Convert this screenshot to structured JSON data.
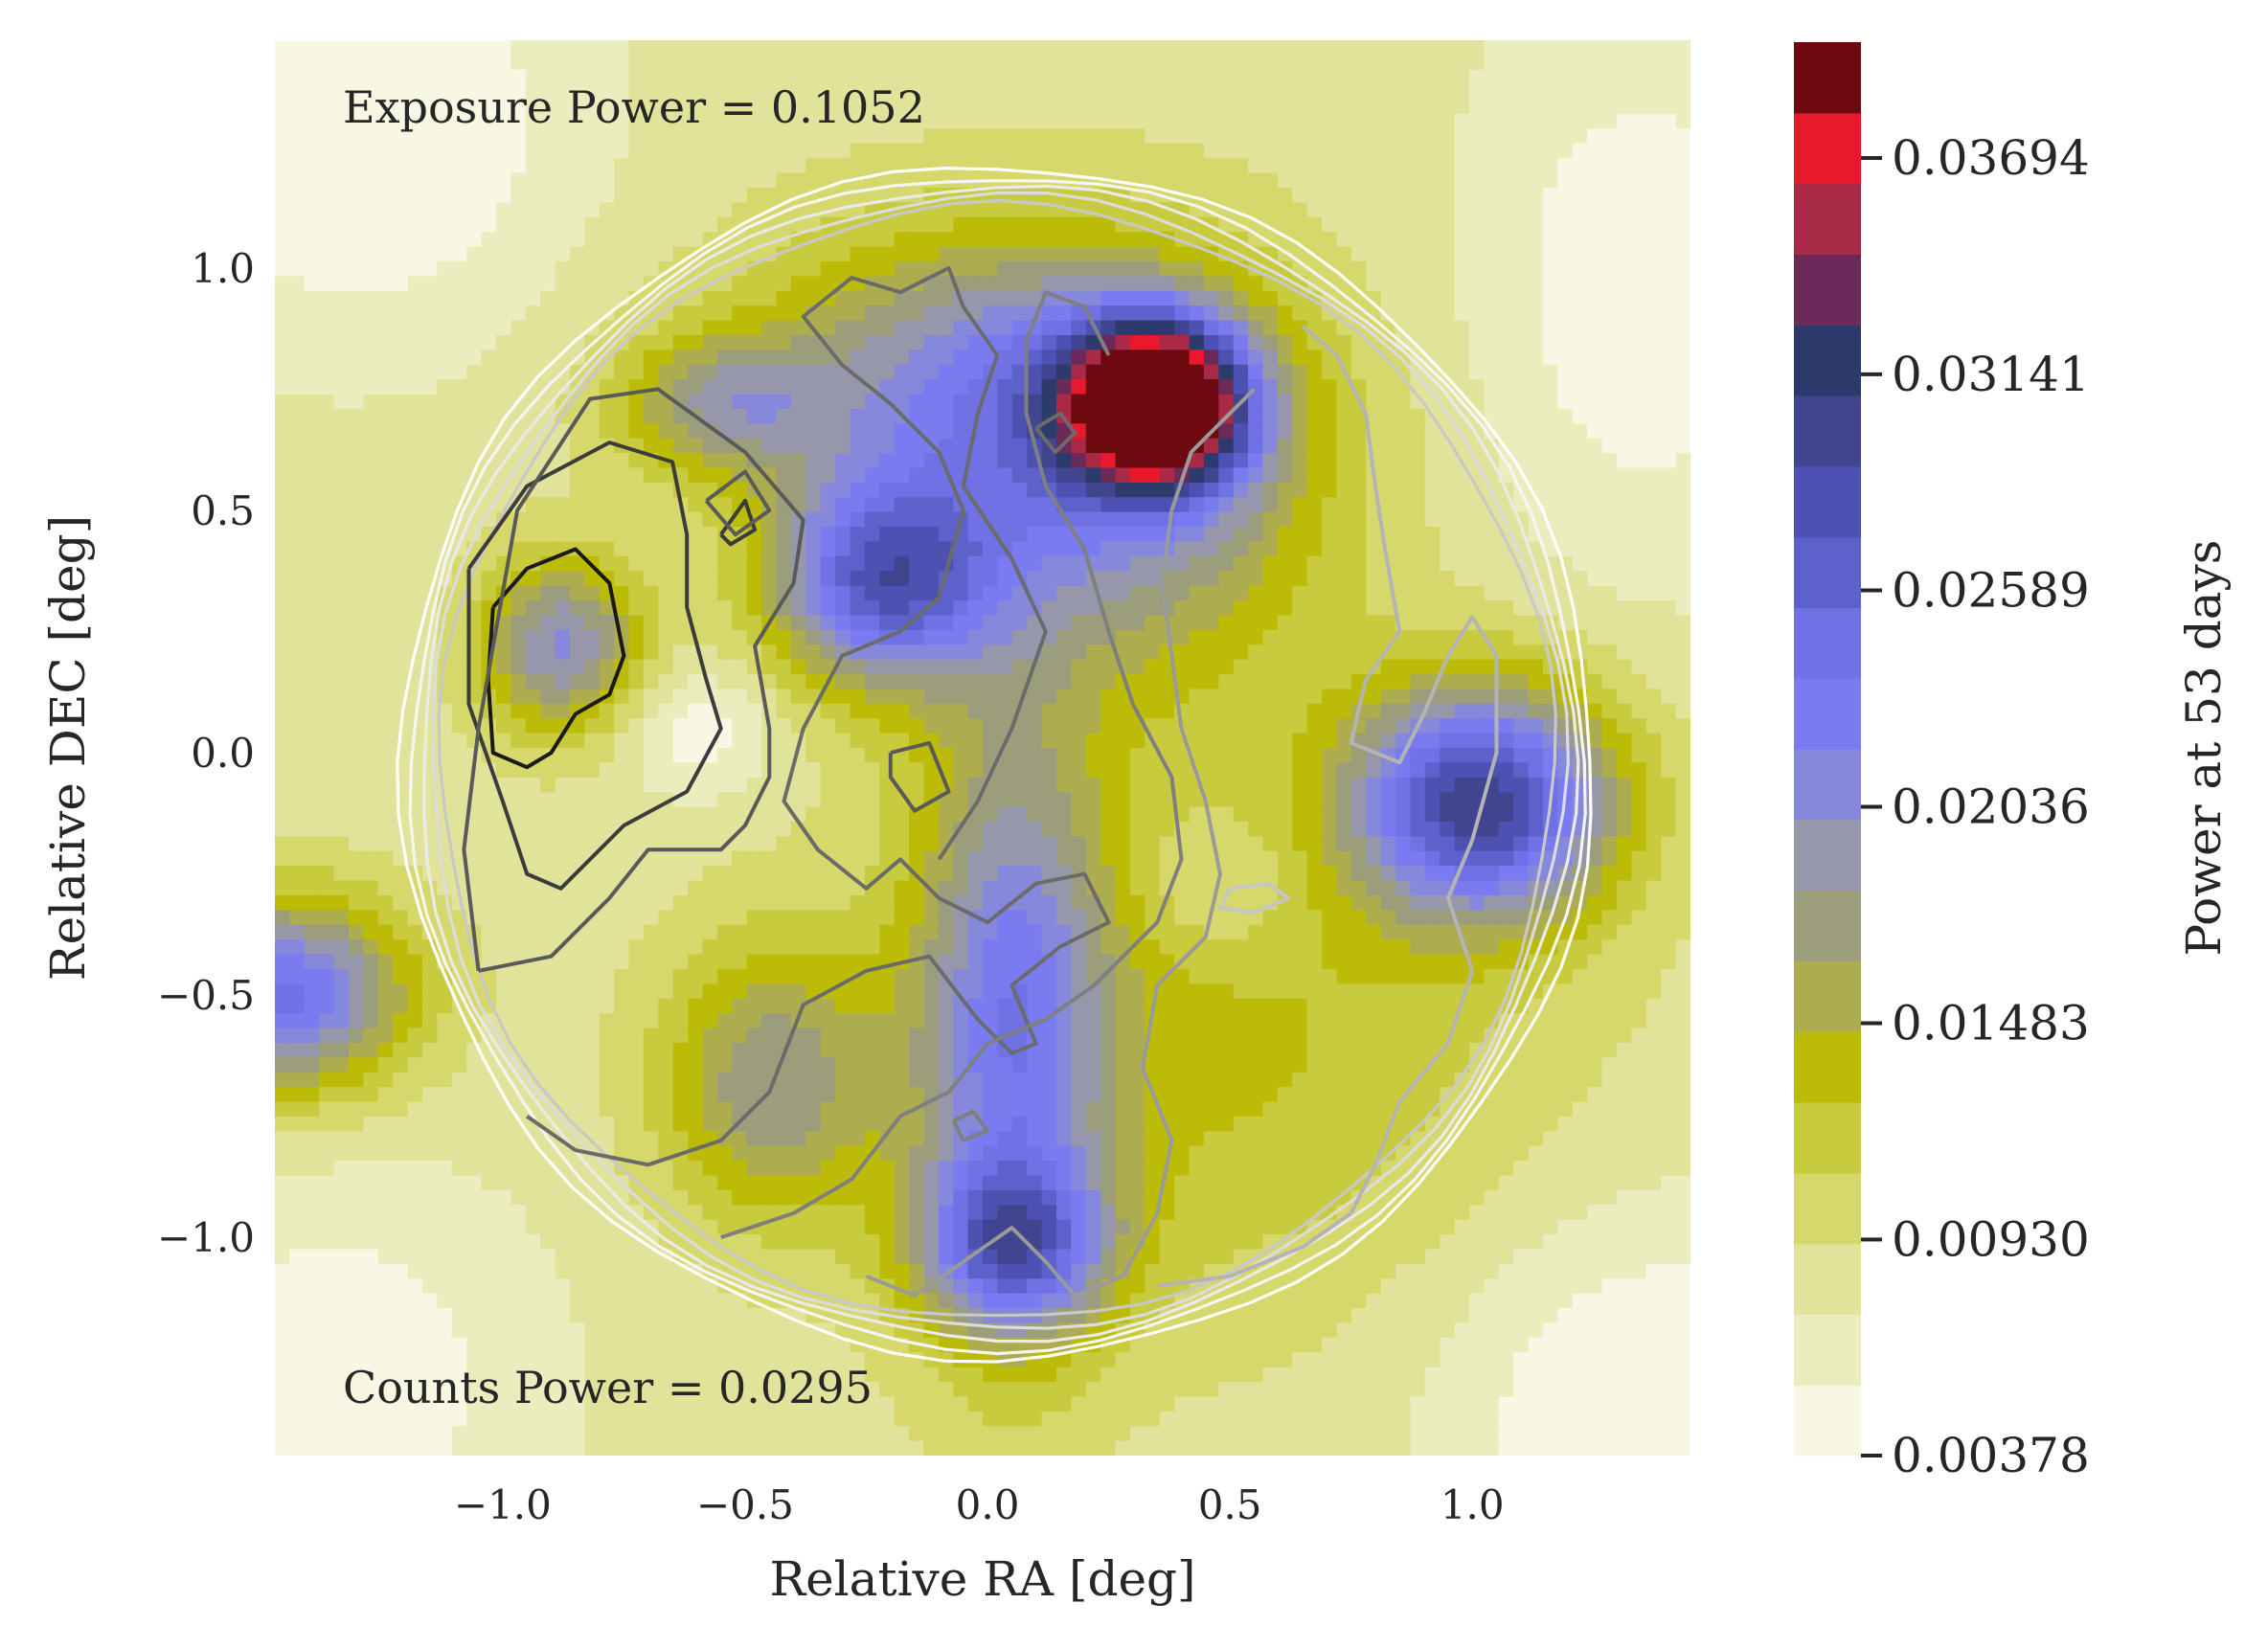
{
  "chart_data": {
    "type": "heatmap",
    "title": "",
    "xlabel": "Relative RA [deg]",
    "ylabel": "Relative DEC [deg]",
    "xlim": [
      -1.47,
      1.45
    ],
    "ylim": [
      -1.45,
      1.47
    ],
    "xticks": [
      -1.0,
      -0.5,
      0.0,
      0.5,
      1.0
    ],
    "xtick_labels": [
      "−1.0",
      "−0.5",
      "0.0",
      "0.5",
      "1.0"
    ],
    "yticks": [
      -1.0,
      -0.5,
      0.0,
      0.5,
      1.0
    ],
    "ytick_labels": [
      "−1.0",
      "−0.5",
      "0.0",
      "0.5",
      "1.0"
    ],
    "grid": true,
    "annotations": {
      "exposure": "Exposure Power = 0.1052",
      "counts": "Counts Power = 0.0295"
    },
    "colorbar": {
      "label": "Power at 53 days",
      "min": 0.00378,
      "max": 0.0399,
      "levels": 20,
      "ticks": [
        0.00378,
        0.0093,
        0.01483,
        0.02036,
        0.02589,
        0.03141,
        0.03694
      ],
      "tick_labels": [
        "0.00378",
        "0.00930",
        "0.01483",
        "0.02036",
        "0.02589",
        "0.03141",
        "0.03694"
      ],
      "colors": [
        "#f7f7e3",
        "#ecedbf",
        "#e2e39b",
        "#d6d86c",
        "#c8cb3e",
        "#bcbc08",
        "#adac4e",
        "#9b9d7b",
        "#9697ab",
        "#8688dc",
        "#7b7bf1",
        "#6f71e4",
        "#5d61cc",
        "#4d51b1",
        "#41448e",
        "#2c3a6c",
        "#6b2a57",
        "#a92a46",
        "#e8182d",
        "#6d0a10"
      ]
    },
    "power_field": {
      "units": "power",
      "background": 0.0082,
      "features": [
        {
          "ra": 0.35,
          "dec": 0.72,
          "amp": 0.031,
          "sra": 0.13,
          "sdec": 0.12
        },
        {
          "ra": 0.25,
          "dec": 0.55,
          "amp": 0.011,
          "sra": 0.32,
          "sdec": 0.3
        },
        {
          "ra": -0.05,
          "dec": 0.78,
          "amp": 0.009,
          "sra": 0.35,
          "sdec": 0.22
        },
        {
          "ra": -0.22,
          "dec": 0.35,
          "amp": 0.016,
          "sra": 0.16,
          "sdec": 0.15
        },
        {
          "ra": 1.02,
          "dec": -0.1,
          "amp": 0.021,
          "sra": 0.19,
          "sdec": 0.17
        },
        {
          "ra": 0.05,
          "dec": -0.55,
          "amp": 0.012,
          "sra": 0.14,
          "sdec": 0.45
        },
        {
          "ra": 0.05,
          "dec": -1.02,
          "amp": 0.013,
          "sra": 0.14,
          "sdec": 0.12
        },
        {
          "ra": -0.88,
          "dec": 0.22,
          "amp": 0.012,
          "sra": 0.12,
          "sdec": 0.13
        },
        {
          "ra": -1.45,
          "dec": -0.5,
          "amp": 0.016,
          "sra": 0.18,
          "sdec": 0.14
        },
        {
          "ra": -0.45,
          "dec": -0.68,
          "amp": 0.009,
          "sra": 0.16,
          "sdec": 0.2
        },
        {
          "ra": 0.45,
          "dec": -0.6,
          "amp": 0.005,
          "sra": 0.5,
          "sdec": 0.4
        },
        {
          "ra": -0.55,
          "dec": 0.72,
          "amp": 0.008,
          "sra": 0.15,
          "sdec": 0.1
        },
        {
          "ra": -1.3,
          "dec": 1.3,
          "amp": -0.0052,
          "sra": 0.3,
          "sdec": 0.3
        },
        {
          "ra": 1.35,
          "dec": -1.35,
          "amp": -0.0048,
          "sra": 0.3,
          "sdec": 0.3
        },
        {
          "ra": 1.35,
          "dec": 0.95,
          "amp": -0.004,
          "sra": 0.25,
          "sdec": 0.4
        },
        {
          "ra": -1.35,
          "dec": -1.3,
          "amp": -0.004,
          "sra": 0.3,
          "sdec": 0.3
        },
        {
          "ra": -0.6,
          "dec": 0.05,
          "amp": -0.004,
          "sra": 0.12,
          "sdec": 0.1
        },
        {
          "ra": 0.48,
          "dec": -0.28,
          "amp": -0.003,
          "sra": 0.12,
          "sdec": 0.1
        }
      ]
    },
    "exposure_contours": {
      "center": [
        0.02,
        -0.02
      ],
      "radii": [
        1.15,
        1.17,
        1.19,
        1.21,
        1.23
      ],
      "colors": [
        "#c8c8c8",
        "#dcdcdc",
        "#eaeaea",
        "#f5f5f5",
        "#ffffff"
      ]
    },
    "counts_contours": [
      {
        "color": "#1a1a1a",
        "points": [
          [
            -1.02,
            0.3
          ],
          [
            -0.95,
            0.38
          ],
          [
            -0.85,
            0.42
          ],
          [
            -0.78,
            0.35
          ],
          [
            -0.75,
            0.2
          ],
          [
            -0.78,
            0.12
          ],
          [
            -0.85,
            0.08
          ],
          [
            -0.9,
            0.0
          ],
          [
            -0.95,
            -0.03
          ],
          [
            -1.02,
            0.0
          ],
          [
            -1.03,
            0.15
          ],
          [
            -1.02,
            0.3
          ]
        ]
      },
      {
        "color": "#3c3c3c",
        "points": [
          [
            -1.07,
            0.38
          ],
          [
            -0.95,
            0.55
          ],
          [
            -0.78,
            0.64
          ],
          [
            -0.65,
            0.6
          ],
          [
            -0.62,
            0.45
          ],
          [
            -0.62,
            0.3
          ],
          [
            -0.58,
            0.15
          ],
          [
            -0.55,
            0.05
          ],
          [
            -0.62,
            -0.08
          ],
          [
            -0.75,
            -0.15
          ],
          [
            -0.88,
            -0.28
          ],
          [
            -0.95,
            -0.25
          ],
          [
            -1.0,
            -0.1
          ],
          [
            -1.07,
            0.1
          ],
          [
            -1.07,
            0.38
          ]
        ]
      },
      {
        "color": "#5a5a5a",
        "points": [
          [
            -1.05,
            -0.45
          ],
          [
            -1.08,
            -0.2
          ],
          [
            -1.05,
            0.05
          ],
          [
            -0.97,
            0.5
          ],
          [
            -0.82,
            0.73
          ],
          [
            -0.68,
            0.75
          ],
          [
            -0.5,
            0.62
          ],
          [
            -0.38,
            0.48
          ],
          [
            -0.4,
            0.35
          ],
          [
            -0.48,
            0.22
          ],
          [
            -0.45,
            0.05
          ],
          [
            -0.45,
            -0.05
          ],
          [
            -0.5,
            -0.15
          ],
          [
            -0.55,
            -0.2
          ],
          [
            -0.7,
            -0.2
          ],
          [
            -0.78,
            -0.3
          ],
          [
            -0.9,
            -0.42
          ],
          [
            -1.05,
            -0.45
          ]
        ]
      },
      {
        "color": "#6b6b6b",
        "points": [
          [
            -0.95,
            -0.75
          ],
          [
            -0.85,
            -0.82
          ],
          [
            -0.7,
            -0.85
          ],
          [
            -0.55,
            -0.8
          ],
          [
            -0.45,
            -0.7
          ],
          [
            -0.38,
            -0.52
          ],
          [
            -0.25,
            -0.45
          ],
          [
            -0.12,
            -0.42
          ],
          [
            -0.02,
            -0.55
          ],
          [
            0.05,
            -0.62
          ],
          [
            0.1,
            -0.6
          ],
          [
            0.05,
            -0.48
          ],
          [
            0.15,
            -0.4
          ],
          [
            0.25,
            -0.35
          ],
          [
            0.2,
            -0.25
          ],
          [
            0.1,
            -0.27
          ],
          [
            0.0,
            -0.35
          ],
          [
            -0.1,
            -0.3
          ],
          [
            -0.18,
            -0.22
          ],
          [
            -0.25,
            -0.28
          ],
          [
            -0.35,
            -0.2
          ],
          [
            -0.42,
            -0.1
          ],
          [
            -0.38,
            0.05
          ],
          [
            -0.3,
            0.2
          ],
          [
            -0.18,
            0.25
          ],
          [
            -0.1,
            0.32
          ],
          [
            -0.05,
            0.5
          ],
          [
            -0.1,
            0.62
          ],
          [
            -0.2,
            0.72
          ],
          [
            -0.3,
            0.8
          ],
          [
            -0.38,
            0.9
          ],
          [
            -0.28,
            0.98
          ],
          [
            -0.18,
            0.95
          ],
          [
            -0.08,
            1.0
          ],
          [
            -0.05,
            0.92
          ],
          [
            0.02,
            0.82
          ],
          [
            -0.02,
            0.7
          ],
          [
            -0.05,
            0.55
          ],
          [
            0.05,
            0.4
          ],
          [
            0.12,
            0.25
          ],
          [
            0.05,
            0.05
          ],
          [
            -0.02,
            -0.1
          ],
          [
            -0.1,
            -0.22
          ]
        ]
      },
      {
        "color": "#7f7f7f",
        "points": [
          [
            -0.55,
            -1.0
          ],
          [
            -0.4,
            -0.95
          ],
          [
            -0.28,
            -0.88
          ],
          [
            -0.18,
            -0.75
          ],
          [
            -0.08,
            -0.7
          ],
          [
            0.0,
            -0.6
          ],
          [
            0.12,
            -0.55
          ],
          [
            0.22,
            -0.48
          ],
          [
            0.35,
            -0.35
          ],
          [
            0.4,
            -0.22
          ],
          [
            0.38,
            -0.05
          ],
          [
            0.3,
            0.1
          ],
          [
            0.25,
            0.25
          ],
          [
            0.2,
            0.42
          ],
          [
            0.12,
            0.55
          ],
          [
            0.08,
            0.7
          ],
          [
            0.08,
            0.85
          ],
          [
            0.12,
            0.95
          ],
          [
            0.2,
            0.92
          ],
          [
            0.25,
            0.82
          ]
        ]
      },
      {
        "color": "#9a9a9a",
        "points": [
          [
            -0.25,
            -1.08
          ],
          [
            -0.15,
            -1.12
          ],
          [
            -0.05,
            -1.05
          ],
          [
            0.05,
            -0.98
          ],
          [
            0.12,
            -1.05
          ],
          [
            0.18,
            -1.12
          ],
          [
            0.28,
            -1.08
          ],
          [
            0.35,
            -0.95
          ],
          [
            0.38,
            -0.8
          ],
          [
            0.32,
            -0.65
          ],
          [
            0.35,
            -0.48
          ],
          [
            0.45,
            -0.38
          ],
          [
            0.48,
            -0.25
          ],
          [
            0.45,
            -0.1
          ],
          [
            0.4,
            0.05
          ],
          [
            0.38,
            0.2
          ],
          [
            0.36,
            0.35
          ],
          [
            0.38,
            0.5
          ],
          [
            0.42,
            0.62
          ],
          [
            0.5,
            0.7
          ],
          [
            0.55,
            0.75
          ]
        ]
      },
      {
        "color": "#b4b4b4",
        "points": [
          [
            0.65,
            0.88
          ],
          [
            0.72,
            0.82
          ],
          [
            0.78,
            0.7
          ],
          [
            0.8,
            0.55
          ],
          [
            0.82,
            0.42
          ],
          [
            0.85,
            0.25
          ],
          [
            0.78,
            0.15
          ],
          [
            0.75,
            0.02
          ],
          [
            0.85,
            -0.02
          ],
          [
            0.9,
            0.08
          ],
          [
            0.95,
            0.2
          ],
          [
            1.0,
            0.28
          ],
          [
            1.05,
            0.2
          ],
          [
            1.05,
            0.0
          ],
          [
            1.0,
            -0.18
          ],
          [
            0.95,
            -0.3
          ],
          [
            1.0,
            -0.45
          ],
          [
            0.95,
            -0.6
          ],
          [
            0.85,
            -0.72
          ],
          [
            0.8,
            -0.85
          ],
          [
            0.75,
            -0.95
          ],
          [
            0.65,
            -1.02
          ],
          [
            0.5,
            -1.08
          ],
          [
            0.35,
            -1.1
          ]
        ]
      },
      {
        "color": "#c6c6c6",
        "points": [
          [
            0.5,
            -0.28
          ],
          [
            0.58,
            -0.27
          ],
          [
            0.62,
            -0.3
          ],
          [
            0.55,
            -0.33
          ],
          [
            0.48,
            -0.32
          ],
          [
            0.5,
            -0.28
          ]
        ]
      },
      {
        "color": "#3c3c3c",
        "points": [
          [
            -0.55,
            0.45
          ],
          [
            -0.5,
            0.52
          ],
          [
            -0.48,
            0.46
          ],
          [
            -0.53,
            0.43
          ],
          [
            -0.55,
            0.45
          ]
        ]
      },
      {
        "color": "#5a5a5a",
        "points": [
          [
            -0.58,
            0.52
          ],
          [
            -0.5,
            0.58
          ],
          [
            -0.45,
            0.5
          ],
          [
            -0.52,
            0.45
          ],
          [
            -0.58,
            0.52
          ]
        ]
      },
      {
        "color": "#5a5a5a",
        "points": [
          [
            -0.2,
            0.0
          ],
          [
            -0.12,
            0.02
          ],
          [
            -0.08,
            -0.08
          ],
          [
            -0.15,
            -0.12
          ],
          [
            -0.2,
            -0.05
          ],
          [
            -0.2,
            0.0
          ]
        ]
      },
      {
        "color": "#6b6b6b",
        "points": [
          [
            0.1,
            0.67
          ],
          [
            0.15,
            0.7
          ],
          [
            0.18,
            0.66
          ],
          [
            0.14,
            0.62
          ],
          [
            0.1,
            0.67
          ]
        ]
      },
      {
        "color": "#7f7f7f",
        "points": [
          [
            -0.07,
            -0.76
          ],
          [
            -0.03,
            -0.74
          ],
          [
            0.0,
            -0.78
          ],
          [
            -0.05,
            -0.8
          ],
          [
            -0.07,
            -0.76
          ]
        ]
      }
    ]
  }
}
